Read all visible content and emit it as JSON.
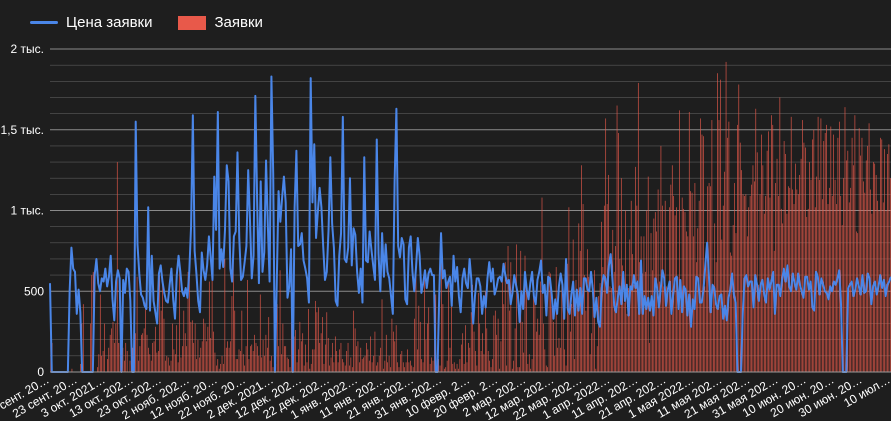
{
  "legend": {
    "price_label": "Цена заявки",
    "bids_label": "Заявки"
  },
  "colors": {
    "price": "#4a86e8",
    "bids": "#e8594a",
    "background": "#1e1e1e",
    "grid": "#5a5a5a"
  },
  "chart_data": {
    "type": "bar+line",
    "y_ticks": [
      "0",
      "500",
      "1 тыс.",
      "1,5 тыс.",
      "2 тыс."
    ],
    "y_tick_values": [
      0,
      500,
      1000,
      1500,
      2000
    ],
    "ylim": [
      0,
      2000
    ],
    "grid": true,
    "legend_position": "top-left",
    "x_tick_labels": [
      "13 сент. 20…",
      "23 сент. 20…",
      "3 окт. 2021…",
      "13 окт. 202…",
      "23 окт. 202…",
      "2 нояб. 202…",
      "12 нояб. 20…",
      "22 нояб. 20…",
      "2 дек. 2021…",
      "12 дек. 202…",
      "22 дек. 202…",
      "1 янв. 2022…",
      "11 янв. 202…",
      "21 янв. 202…",
      "31 янв. 202…",
      "10 февр. 2…",
      "20 февр. 2…",
      "2 мар. 202…",
      "12 мар. 202…",
      "22 мар. 202…",
      "1 апр. 2022…",
      "11 апр. 202…",
      "21 апр. 202…",
      "1 мая 2022…",
      "11 мая 202…",
      "21 мая 202…",
      "31 мая 202…",
      "10 июн. 20…",
      "20 июн. 20…",
      "30 июн. 20…",
      "10 июл…"
    ],
    "series": [
      {
        "name": "Заявки",
        "type": "bar",
        "values": [
          380,
          180,
          0,
          0,
          0,
          0,
          0,
          0,
          0,
          0,
          0,
          0,
          0,
          0,
          0,
          20,
          0,
          0,
          0,
          0,
          0,
          50,
          300,
          420,
          0,
          0,
          0,
          0,
          300,
          600,
          620,
          0,
          0,
          30,
          110,
          480,
          100,
          130,
          300,
          0,
          80,
          150,
          230,
          270,
          310,
          180,
          300,
          1300,
          180,
          180,
          220,
          150,
          70,
          180,
          130,
          0,
          70,
          170,
          150,
          80,
          240,
          590,
          70,
          160,
          230,
          240,
          270,
          430,
          230,
          150,
          110,
          70,
          180,
          190,
          280,
          120,
          130,
          600,
          380,
          550,
          330,
          70,
          100,
          90,
          40,
          70,
          300,
          140,
          110,
          290,
          60,
          650,
          90,
          160,
          380,
          240,
          160,
          620,
          610,
          310,
          320,
          180,
          300,
          80,
          200,
          90,
          150,
          190,
          330,
          300,
          190,
          280,
          560,
          210,
          640,
          250,
          120,
          40,
          80,
          20,
          50,
          100,
          50,
          700,
          150,
          190,
          150,
          190,
          470,
          700,
          380,
          80,
          80,
          140,
          130,
          380,
          110,
          40,
          160,
          570,
          80,
          160,
          170,
          130,
          230,
          180,
          160,
          100,
          480,
          90,
          200,
          100,
          230,
          150,
          340,
          70,
          100,
          30,
          90,
          50,
          420,
          160,
          630,
          110,
          300,
          160,
          160,
          90,
          80,
          30,
          310,
          170,
          220,
          260,
          60,
          140,
          310,
          190,
          240,
          40,
          170,
          60,
          390,
          20,
          50,
          140,
          140,
          440,
          370,
          400,
          180,
          240,
          340,
          50,
          170,
          370,
          210,
          40,
          90,
          180,
          60,
          220,
          130,
          60,
          140,
          180,
          80,
          60,
          40,
          130,
          180,
          40,
          90,
          30,
          380,
          270,
          160,
          190,
          60,
          150,
          80,
          90,
          100,
          180,
          140,
          70,
          220,
          60,
          100,
          250,
          40,
          60,
          100,
          150,
          450,
          20,
          70,
          230,
          60,
          100,
          30,
          330,
          250,
          190,
          290,
          60,
          30,
          110,
          130,
          60,
          30,
          60,
          140,
          60,
          70,
          40,
          30,
          330,
          670,
          140,
          410,
          310,
          80,
          60,
          580,
          200,
          300,
          400,
          50,
          90,
          70,
          270,
          480,
          70,
          80,
          40,
          750,
          420,
          20,
          30,
          70,
          560,
          150,
          460,
          50,
          60,
          20,
          50,
          20,
          80,
          170,
          240,
          50,
          290,
          60,
          180,
          150,
          370,
          540,
          250,
          130,
          40,
          490,
          300,
          130,
          240,
          110,
          500,
          270,
          130,
          70,
          30,
          80,
          350,
          380,
          230,
          330,
          20,
          190,
          580,
          420,
          680,
          40,
          780,
          380,
          680,
          20,
          70,
          270,
          790,
          30,
          30,
          750,
          310,
          120,
          720,
          540,
          50,
          110,
          20,
          80,
          570,
          450,
          250,
          330,
          230,
          560,
          1080,
          300,
          140,
          40,
          30,
          620,
          610,
          420,
          310,
          100,
          650,
          150,
          210,
          150,
          580,
          460,
          140,
          40,
          670,
          1020,
          250,
          420,
          820,
          80,
          570,
          510,
          920,
          750,
          1280,
          1040,
          600,
          380,
          760,
          590,
          110,
          240,
          540,
          630,
          20,
          160,
          470,
          550,
          930,
          650,
          1030,
          1570,
          1040,
          1220,
          530,
          520,
          880,
          620,
          780,
          1650,
          1480,
          700,
          1200,
          660,
          430,
          1000,
          360,
          520,
          820,
          1060,
          730,
          540,
          1270,
          1030,
          1790,
          680,
          840,
          610,
          840,
          620,
          1000,
          1210,
          180,
          860,
          630,
          950,
          990,
          870,
          1130,
          560,
          1400,
          1030,
          530,
          1060,
          530,
          520,
          1020,
          1160,
          1280,
          1090,
          970,
          1020,
          590,
          1620,
          560,
          1080,
          1010,
          990,
          870,
          840,
          1610,
          1120,
          1110,
          840,
          1170,
          680,
          890,
          1060,
          1570,
          1470,
          1460,
          530,
          770,
          1150,
          1170,
          1150,
          1560,
          540,
          920,
          680,
          1850,
          1560,
          1810,
          820,
          1030,
          1240,
          1920,
          1450,
          1550,
          740,
          720,
          910,
          1170,
          860,
          1530,
          1780,
          1420,
          1250,
          1100,
          1090,
          1100,
          840,
          1020,
          1090,
          1160,
          1280,
          1180,
          1630,
          1360,
          540,
          1100,
          1470,
          1280,
          980,
          1090,
          1370,
          1490,
          1080,
          1590,
          1530,
          750,
          1170,
          1320,
          1090,
          1700,
          1010,
          920,
          1430,
          1350,
          980,
          1150,
          1140,
          1580,
          1130,
          1040,
          1290,
          1130,
          1100,
          1220,
          1320,
          1560,
          1420,
          1390,
          960,
          1010,
          1300,
          1190,
          1440,
          1500,
          1020,
          1210,
          1580,
          1190,
          1570,
          1070,
          1430,
          1480,
          1530,
          1040,
          1140,
          1520,
          1090,
          1470,
          1190,
          1040,
          1450,
          1550,
          1090,
          910,
          1200,
          1640,
          1310,
          1370,
          1050,
          1140,
          1450,
          1280,
          1590,
          870,
          860,
          1510,
          1340,
          1450,
          1180,
          1110,
          1310,
          1400,
          1540,
          1130,
          980,
          1300,
          1290,
          1220,
          1060,
          1000,
          1450,
          1440,
          1050,
          1380,
          1000,
          1350,
          1410,
          1200
        ]
      },
      {
        "name": "Цена заявки",
        "type": "line",
        "values": [
          550,
          0,
          0,
          0,
          0,
          0,
          0,
          0,
          0,
          0,
          0,
          500,
          770,
          640,
          620,
          360,
          510,
          370,
          0,
          0,
          0,
          0,
          0,
          0,
          0,
          600,
          700,
          550,
          500,
          580,
          560,
          640,
          530,
          590,
          720,
          450,
          320,
          560,
          630,
          580,
          0,
          570,
          490,
          640,
          620,
          440,
          0,
          0,
          1550,
          790,
          610,
          480,
          460,
          410,
          390,
          1020,
          380,
          720,
          440,
          370,
          300,
          610,
          660,
          560,
          490,
          440,
          430,
          540,
          640,
          450,
          330,
          600,
          720,
          620,
          500,
          470,
          520,
          460,
          620,
          900,
          1590,
          750,
          610,
          440,
          370,
          740,
          630,
          570,
          660,
          840,
          710,
          570,
          1210,
          880,
          1610,
          640,
          760,
          650,
          880,
          1280,
          1180,
          640,
          560,
          840,
          870,
          1360,
          830,
          570,
          590,
          680,
          780,
          1250,
          940,
          580,
          720,
          1710,
          1060,
          550,
          1180,
          620,
          740,
          1310,
          910,
          560,
          1830,
          1230,
          0,
          560,
          1120,
          930,
          1080,
          1210,
          1050,
          460,
          530,
          760,
          0,
          1020,
          1370,
          780,
          790,
          860,
          690,
          640,
          580,
          430,
          1820,
          1050,
          1410,
          830,
          990,
          1140,
          1020,
          780,
          570,
          620,
          880,
          1330,
          920,
          770,
          440,
          410,
          720,
          860,
          1580,
          700,
          680,
          770,
          1200,
          660,
          890,
          850,
          620,
          490,
          640,
          430,
          1330,
          690,
          680,
          870,
          760,
          660,
          570,
          1440,
          730,
          500,
          860,
          590,
          790,
          620,
          580,
          470,
          360,
          1180,
          1630,
          780,
          710,
          830,
          790,
          450,
          420,
          770,
          840,
          620,
          500,
          650,
          830,
          720,
          490,
          550,
          630,
          520,
          610,
          640,
          600,
          600,
          0,
          0,
          480,
          860,
          580,
          630,
          520,
          560,
          590,
          410,
          720,
          560,
          650,
          470,
          370,
          580,
          640,
          550,
          520,
          700,
          570,
          300,
          470,
          580,
          580,
          530,
          360,
          470,
          400,
          580,
          680,
          560,
          640,
          480,
          520,
          580,
          590,
          560,
          670,
          600,
          550,
          570,
          420,
          490,
          600,
          540,
          480,
          310,
          500,
          390,
          620,
          510,
          450,
          550,
          620,
          470,
          420,
          570,
          620,
          690,
          490,
          540,
          350,
          590,
          580,
          480,
          330,
          450,
          360,
          530,
          610,
          540,
          330,
          700,
          390,
          360,
          480,
          560,
          350,
          510,
          380,
          520,
          360,
          580,
          580,
          510,
          500,
          620,
          510,
          340,
          460,
          310,
          280,
          520,
          600,
          580,
          490,
          660,
          730,
          570,
          410,
          370,
          460,
          530,
          420,
          620,
          440,
          540,
          350,
          530,
          510,
          600,
          520,
          560,
          360,
          690,
          360,
          470,
          390,
          460,
          380,
          470,
          350,
          580,
          520,
          400,
          510,
          630,
          580,
          410,
          510,
          560,
          360,
          480,
          580,
          590,
          390,
          570,
          370,
          530,
          510,
          350,
          480,
          280,
          450,
          390,
          590,
          580,
          430,
          430,
          510,
          660,
          800,
          600,
          370,
          540,
          520,
          420,
          390,
          470,
          480,
          330,
          410,
          320,
          460,
          510,
          610,
          480,
          430,
          0,
          0,
          0,
          370,
          580,
          600,
          530,
          560,
          560,
          400,
          600,
          540,
          440,
          540,
          570,
          480,
          430,
          580,
          510,
          560,
          620,
          360,
          540,
          540,
          470,
          570,
          640,
          560,
          660,
          530,
          500,
          610,
          550,
          510,
          610,
          540,
          500,
          460,
          590,
          590,
          510,
          560,
          400,
          380,
          620,
          590,
          480,
          580,
          540,
          500,
          490,
          450,
          530,
          500,
          560,
          540,
          580,
          630,
          420,
          0,
          0,
          0,
          520,
          540,
          560,
          470,
          510,
          580,
          530,
          480,
          600,
          490,
          500,
          610,
          580,
          420,
          530,
          560,
          480,
          530,
          600,
          520,
          570,
          470,
          540,
          560,
          590
        ]
      }
    ]
  }
}
